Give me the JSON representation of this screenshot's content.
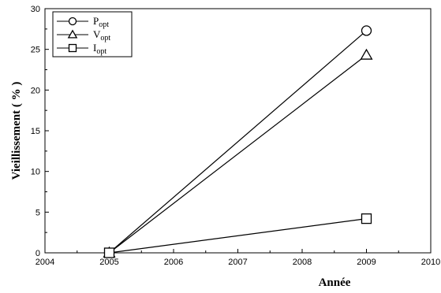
{
  "chart_data": {
    "type": "line",
    "xlabel": "Année",
    "ylabel": "Vieillissement ( % )",
    "xlim": [
      2004,
      2010
    ],
    "ylim": [
      0,
      30
    ],
    "xticks": [
      "2004",
      "2005",
      "2006",
      "2007",
      "2008",
      "2009",
      "2010"
    ],
    "yticks": [
      "0",
      "5",
      "10",
      "15",
      "20",
      "25",
      "30"
    ],
    "grid": false,
    "legend_position": "top-left",
    "series": [
      {
        "name": "P",
        "subscript": "opt",
        "marker": "circle",
        "x": [
          2005,
          2009
        ],
        "y": [
          0,
          27.3
        ]
      },
      {
        "name": "V",
        "subscript": "opt",
        "marker": "triangle",
        "x": [
          2005,
          2009
        ],
        "y": [
          0,
          24.3
        ]
      },
      {
        "name": "I",
        "subscript": "opt",
        "marker": "square",
        "x": [
          2005,
          2009
        ],
        "y": [
          0,
          4.2
        ]
      }
    ]
  }
}
